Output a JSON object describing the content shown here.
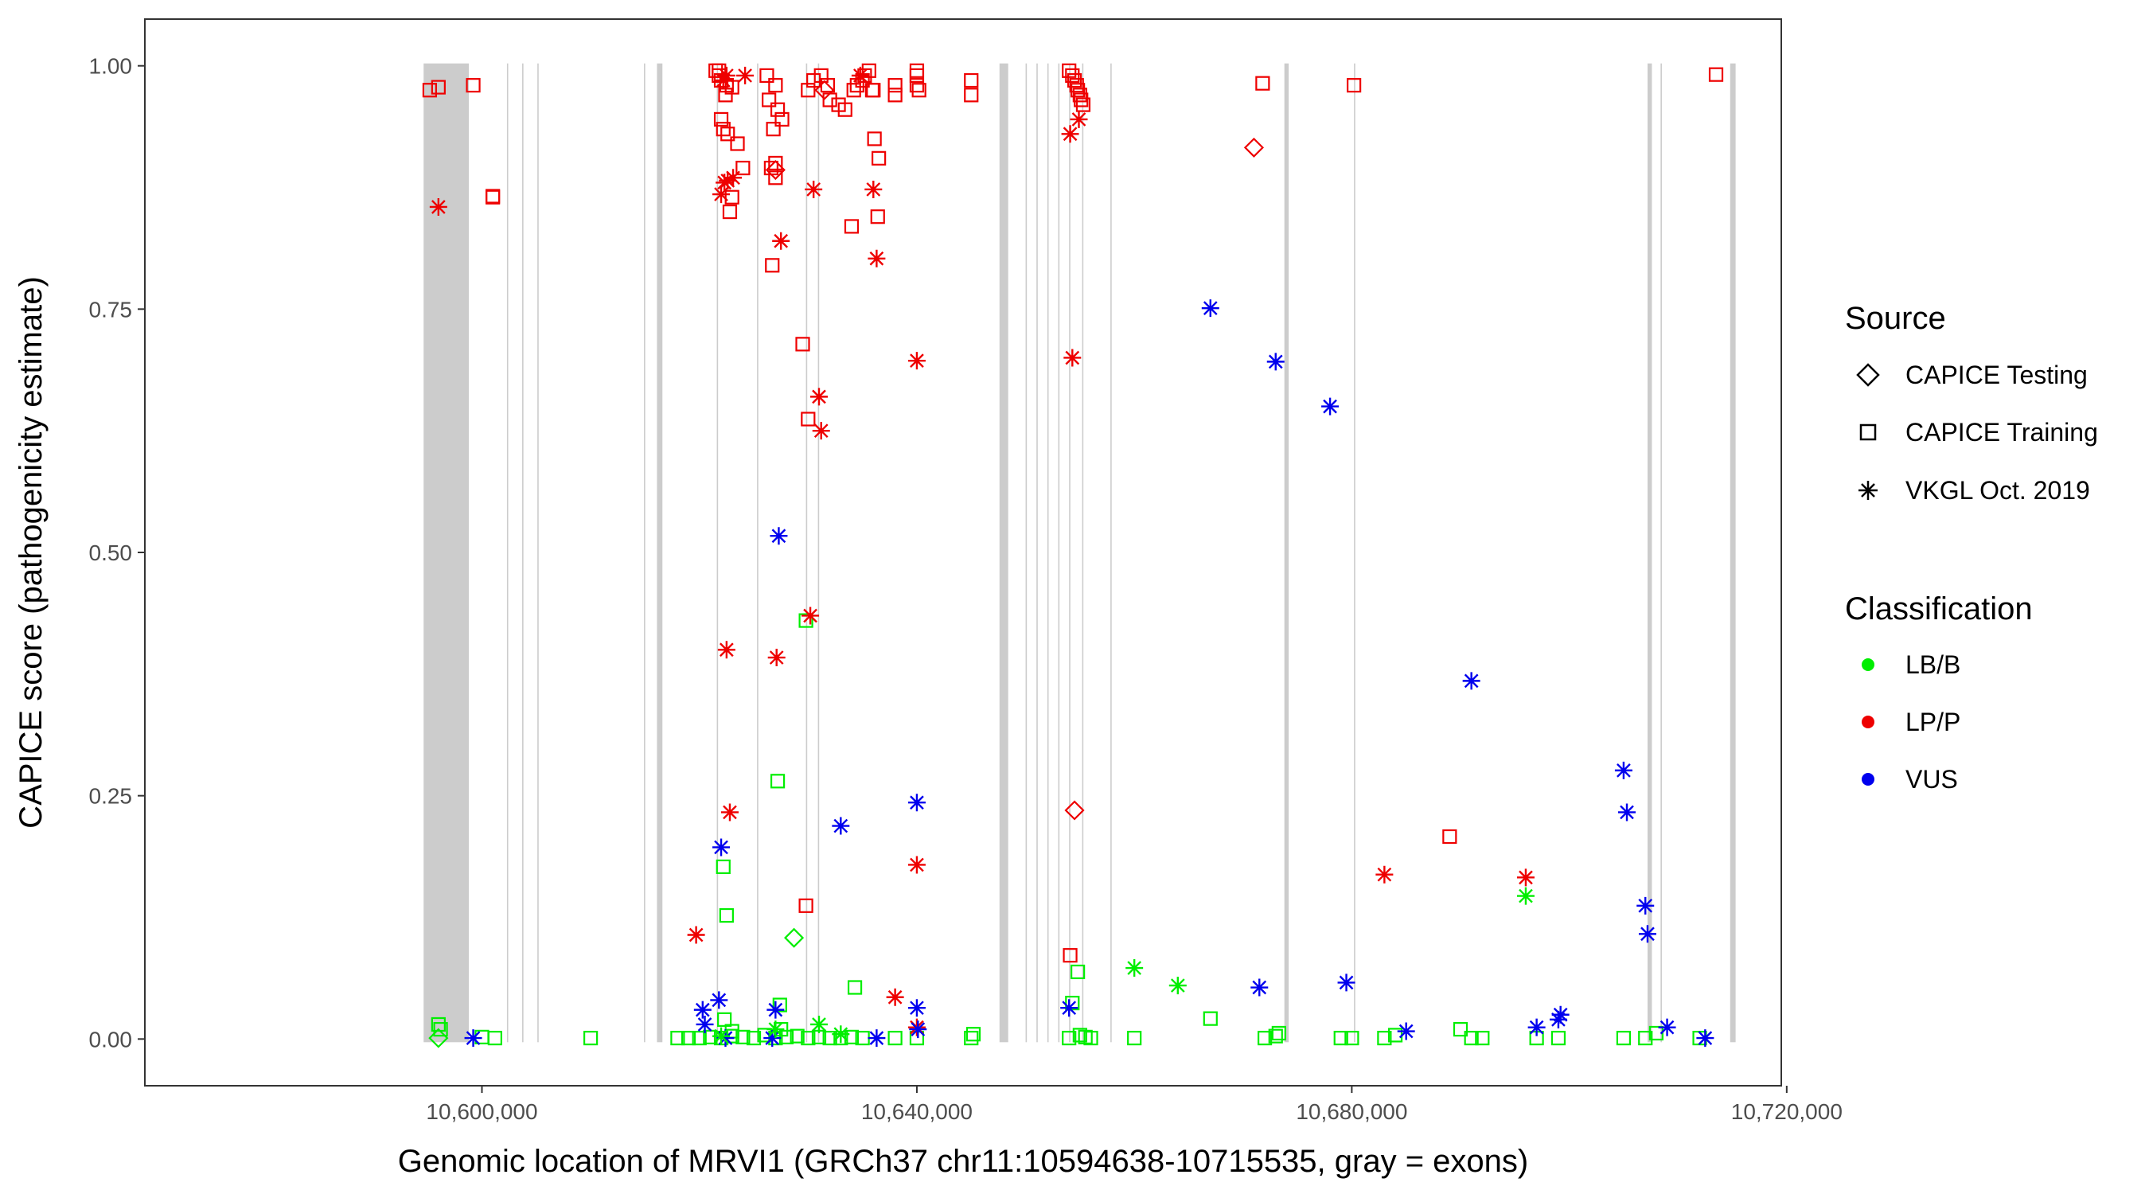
{
  "chart_data": {
    "type": "scatter",
    "title": "",
    "xlabel": "Genomic location of MRVI1 (GRCh37 chr11:10594638-10715535, gray = exons)",
    "ylabel": "CAPICE score (pathogenicity estimate)",
    "xlim": [
      10569000,
      10719500
    ],
    "ylim": [
      -0.048,
      1.048
    ],
    "xticks": [
      10600000,
      10640000,
      10680000,
      10720000
    ],
    "xtick_labels": [
      "10,600,000",
      "10,640,000",
      "10,680,000",
      "10,720,000"
    ],
    "yticks": [
      0.0,
      0.25,
      0.5,
      0.75,
      1.0
    ],
    "ytick_labels": [
      "0.00",
      "0.25",
      "0.50",
      "0.75",
      "1.00"
    ],
    "grid": false,
    "exons": [
      [
        10594638,
        10598800
      ],
      [
        10602300,
        10602400
      ],
      [
        10603700,
        10603800
      ],
      [
        10605100,
        10605200
      ],
      [
        10614900,
        10615000
      ],
      [
        10616100,
        10616600
      ],
      [
        10621600,
        10621700
      ],
      [
        10625300,
        10625400
      ],
      [
        10629800,
        10629900
      ],
      [
        10630900,
        10631000
      ],
      [
        10647600,
        10648400
      ],
      [
        10650000,
        10650100
      ],
      [
        10651000,
        10651100
      ],
      [
        10652000,
        10652100
      ],
      [
        10653000,
        10653100
      ],
      [
        10654000,
        10654100
      ],
      [
        10655200,
        10655300
      ],
      [
        10657800,
        10657900
      ],
      [
        10673800,
        10674200
      ],
      [
        10680200,
        10680300
      ],
      [
        10707200,
        10707600
      ],
      [
        10708400,
        10708500
      ],
      [
        10714800,
        10715300
      ]
    ],
    "legend": {
      "position": "right",
      "source_title": "Source",
      "source_entries": [
        {
          "name": "CAPICE Testing",
          "shape": "diamond"
        },
        {
          "name": "CAPICE Training",
          "shape": "square"
        },
        {
          "name": "VKGL Oct. 2019",
          "shape": "asterisk"
        }
      ],
      "class_title": "Classification",
      "class_entries": [
        {
          "name": "LB/B",
          "color": "#00ee00"
        },
        {
          "name": "LP/P",
          "color": "#ee0000"
        },
        {
          "name": "VUS",
          "color": "#0000ee"
        }
      ]
    },
    "series": [
      {
        "source": "CAPICE Training",
        "classification": "LP/P",
        "shape": "square",
        "color": "#ee0000",
        "x": [
          10595200,
          10596000,
          10599200,
          10601000,
          10601000,
          10621500,
          10621800,
          10622000,
          10622500,
          10623000,
          10622400,
          10622000,
          10622200,
          10622600,
          10623500,
          10624000,
          10623000,
          10622800,
          10621800,
          10626200,
          10627000,
          10626400,
          10627200,
          10627600,
          10626800,
          10626600,
          10627000,
          10626700,
          10630000,
          10630500,
          10631200,
          10631800,
          10632000,
          10632800,
          10633400,
          10634000,
          10634200,
          10634500,
          10635000,
          10635200,
          10635600,
          10636000,
          10636100,
          10636500,
          10636400,
          10638000,
          10638000,
          10640000,
          10640000,
          10640200,
          10640000,
          10645000,
          10645000,
          10654000,
          10654300,
          10654500,
          10654700,
          10654800,
          10655100,
          10655300,
          10655000,
          10671800,
          10680200,
          10713500,
          10689000,
          10630000,
          10629500,
          10627000,
          10635900,
          10629800,
          10654100
        ],
        "y": [
          0.975,
          0.978,
          0.98,
          0.865,
          0.866,
          0.995,
          0.99,
          0.985,
          0.98,
          0.978,
          0.97,
          0.945,
          0.935,
          0.93,
          0.92,
          0.895,
          0.865,
          0.85,
          0.995,
          0.99,
          0.98,
          0.965,
          0.955,
          0.945,
          0.935,
          0.895,
          0.885,
          0.795,
          0.975,
          0.985,
          0.99,
          0.98,
          0.965,
          0.96,
          0.955,
          0.835,
          0.975,
          0.98,
          0.985,
          0.99,
          0.995,
          0.975,
          0.925,
          0.905,
          0.845,
          0.98,
          0.97,
          0.995,
          0.99,
          0.975,
          0.98,
          0.985,
          0.97,
          0.995,
          0.99,
          0.985,
          0.98,
          0.975,
          0.965,
          0.96,
          0.97,
          0.982,
          0.98,
          0.991,
          0.208,
          0.637,
          0.714,
          0.9,
          0.975,
          0.137,
          0.086
        ]
      },
      {
        "source": "CAPICE Training",
        "classification": "LB/B",
        "shape": "square",
        "color": "#00ee00",
        "x": [
          10596000,
          10596200,
          10600000,
          10601200,
          10610000,
          10618000,
          10619000,
          10620000,
          10621000,
          10622000,
          10623000,
          10624000,
          10625000,
          10626000,
          10627000,
          10628000,
          10629000,
          10630000,
          10631000,
          10632000,
          10633000,
          10634000,
          10635000,
          10622200,
          10622500,
          10622300,
          10627200,
          10629800,
          10634300,
          10640000,
          10645000,
          10645200,
          10638000,
          10654000,
          10655000,
          10655500,
          10656000,
          10660000,
          10667000,
          10672000,
          10673000,
          10673300,
          10679000,
          10680000,
          10683000,
          10684000,
          10690000,
          10691000,
          10692000,
          10697000,
          10699000,
          10705000,
          10707000,
          10708000,
          10712000,
          10627500,
          10654300,
          10654800,
          10627400,
          10623000
        ],
        "y": [
          0.015,
          0.01,
          0.002,
          0.001,
          0.001,
          0.001,
          0.001,
          0.001,
          0.002,
          0.001,
          0.003,
          0.002,
          0.001,
          0.004,
          0.001,
          0.002,
          0.003,
          0.001,
          0.002,
          0.001,
          0.001,
          0.002,
          0.001,
          0.177,
          0.127,
          0.02,
          0.265,
          0.43,
          0.053,
          0.001,
          0.001,
          0.005,
          0.001,
          0.001,
          0.004,
          0.002,
          0.001,
          0.001,
          0.021,
          0.001,
          0.003,
          0.006,
          0.001,
          0.001,
          0.001,
          0.004,
          0.01,
          0.001,
          0.001,
          0.001,
          0.001,
          0.001,
          0.001,
          0.006,
          0.001,
          0.01,
          0.037,
          0.069,
          0.035,
          0.008
        ]
      },
      {
        "source": "CAPICE Testing",
        "classification": "LP/P",
        "shape": "diamond",
        "color": "#ee0000",
        "x": [
          10627000,
          10631500,
          10654500,
          10671000
        ],
        "y": [
          0.893,
          0.975,
          0.235,
          0.916
        ]
      },
      {
        "source": "CAPICE Testing",
        "classification": "LB/B",
        "shape": "diamond",
        "color": "#00ee00",
        "x": [
          10596000,
          10628700
        ],
        "y": [
          0.001,
          0.104
        ]
      },
      {
        "source": "VKGL Oct. 2019",
        "classification": "LP/P",
        "shape": "asterisk",
        "color": "#ee0000",
        "x": [
          10596000,
          10622000,
          10622300,
          10622600,
          10623100,
          10622500,
          10622800,
          10619700,
          10622500,
          10627100,
          10627500,
          10630200,
          10630500,
          10631000,
          10631200,
          10636000,
          10636300,
          10640000,
          10640000,
          10640000,
          10638000,
          10654100,
          10654300,
          10654900,
          10683000,
          10696000,
          10622200,
          10624200,
          10634800
        ],
        "y": [
          0.855,
          0.868,
          0.88,
          0.882,
          0.885,
          0.4,
          0.233,
          0.107,
          0.99,
          0.392,
          0.82,
          0.435,
          0.873,
          0.66,
          0.625,
          0.873,
          0.802,
          0.697,
          0.179,
          0.012,
          0.043,
          0.93,
          0.7,
          0.945,
          0.169,
          0.166,
          0.985,
          0.99,
          0.99
        ]
      },
      {
        "source": "VKGL Oct. 2019",
        "classification": "VUS",
        "shape": "asterisk",
        "color": "#0000ee",
        "x": [
          10599200,
          10620300,
          10620500,
          10621800,
          10622000,
          10622400,
          10627000,
          10627300,
          10633000,
          10636300,
          10640000,
          10640000,
          10654000,
          10667000,
          10671500,
          10673000,
          10678000,
          10679500,
          10685000,
          10691000,
          10697000,
          10699000,
          10699200,
          10705000,
          10705300,
          10707000,
          10707200,
          10709000,
          10712500,
          10626700,
          10640100
        ],
        "y": [
          0.001,
          0.03,
          0.015,
          0.04,
          0.197,
          0.001,
          0.03,
          0.517,
          0.219,
          0.001,
          0.243,
          0.032,
          0.032,
          0.751,
          0.053,
          0.696,
          0.65,
          0.058,
          0.008,
          0.368,
          0.012,
          0.02,
          0.025,
          0.276,
          0.233,
          0.137,
          0.108,
          0.012,
          0.001,
          0.001,
          0.01
        ]
      },
      {
        "source": "VKGL Oct. 2019",
        "classification": "LB/B",
        "shape": "asterisk",
        "color": "#00ee00",
        "x": [
          10660000,
          10664000,
          10696000,
          10622000,
          10627000,
          10631000,
          10633000
        ],
        "y": [
          0.073,
          0.055,
          0.147,
          0.003,
          0.01,
          0.015,
          0.005
        ]
      }
    ]
  }
}
